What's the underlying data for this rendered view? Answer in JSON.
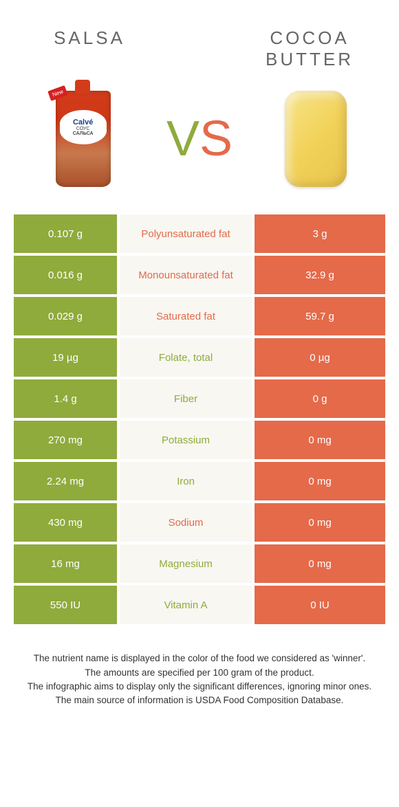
{
  "colors": {
    "green": "#8fab3c",
    "orange": "#e46a4a",
    "mid_bg": "#f8f7f2",
    "text": "#333333",
    "header_grey": "#666666"
  },
  "header": {
    "left_title": "SALSA",
    "right_title_line1": "COCOA",
    "right_title_line2": "BUTTER",
    "vs_v": "V",
    "vs_s": "S"
  },
  "product_images": {
    "left": {
      "brand": "Calvé",
      "subtext": "СОУС",
      "name": "САЛЬСА",
      "badge": "New"
    },
    "right": {
      "name": "cocoa-butter-block"
    }
  },
  "rows": [
    {
      "left": "0.107 g",
      "label": "Polyunsaturated fat",
      "right": "3 g",
      "winner": "orange"
    },
    {
      "left": "0.016 g",
      "label": "Monounsaturated fat",
      "right": "32.9 g",
      "winner": "orange"
    },
    {
      "left": "0.029 g",
      "label": "Saturated fat",
      "right": "59.7 g",
      "winner": "orange"
    },
    {
      "left": "19 µg",
      "label": "Folate, total",
      "right": "0 µg",
      "winner": "green"
    },
    {
      "left": "1.4 g",
      "label": "Fiber",
      "right": "0 g",
      "winner": "green"
    },
    {
      "left": "270 mg",
      "label": "Potassium",
      "right": "0 mg",
      "winner": "green"
    },
    {
      "left": "2.24 mg",
      "label": "Iron",
      "right": "0 mg",
      "winner": "green"
    },
    {
      "left": "430 mg",
      "label": "Sodium",
      "right": "0 mg",
      "winner": "orange"
    },
    {
      "left": "16 mg",
      "label": "Magnesium",
      "right": "0 mg",
      "winner": "green"
    },
    {
      "left": "550 IU",
      "label": "Vitamin A",
      "right": "0 IU",
      "winner": "green"
    }
  ],
  "footer": {
    "line1": "The nutrient name is displayed in the color of the food we considered as 'winner'.",
    "line2": "The amounts are specified per 100 gram of the product.",
    "line3": "The infographic aims to display only the significant differences, ignoring minor ones.",
    "line4": "The main source of information is USDA Food Composition Database."
  }
}
